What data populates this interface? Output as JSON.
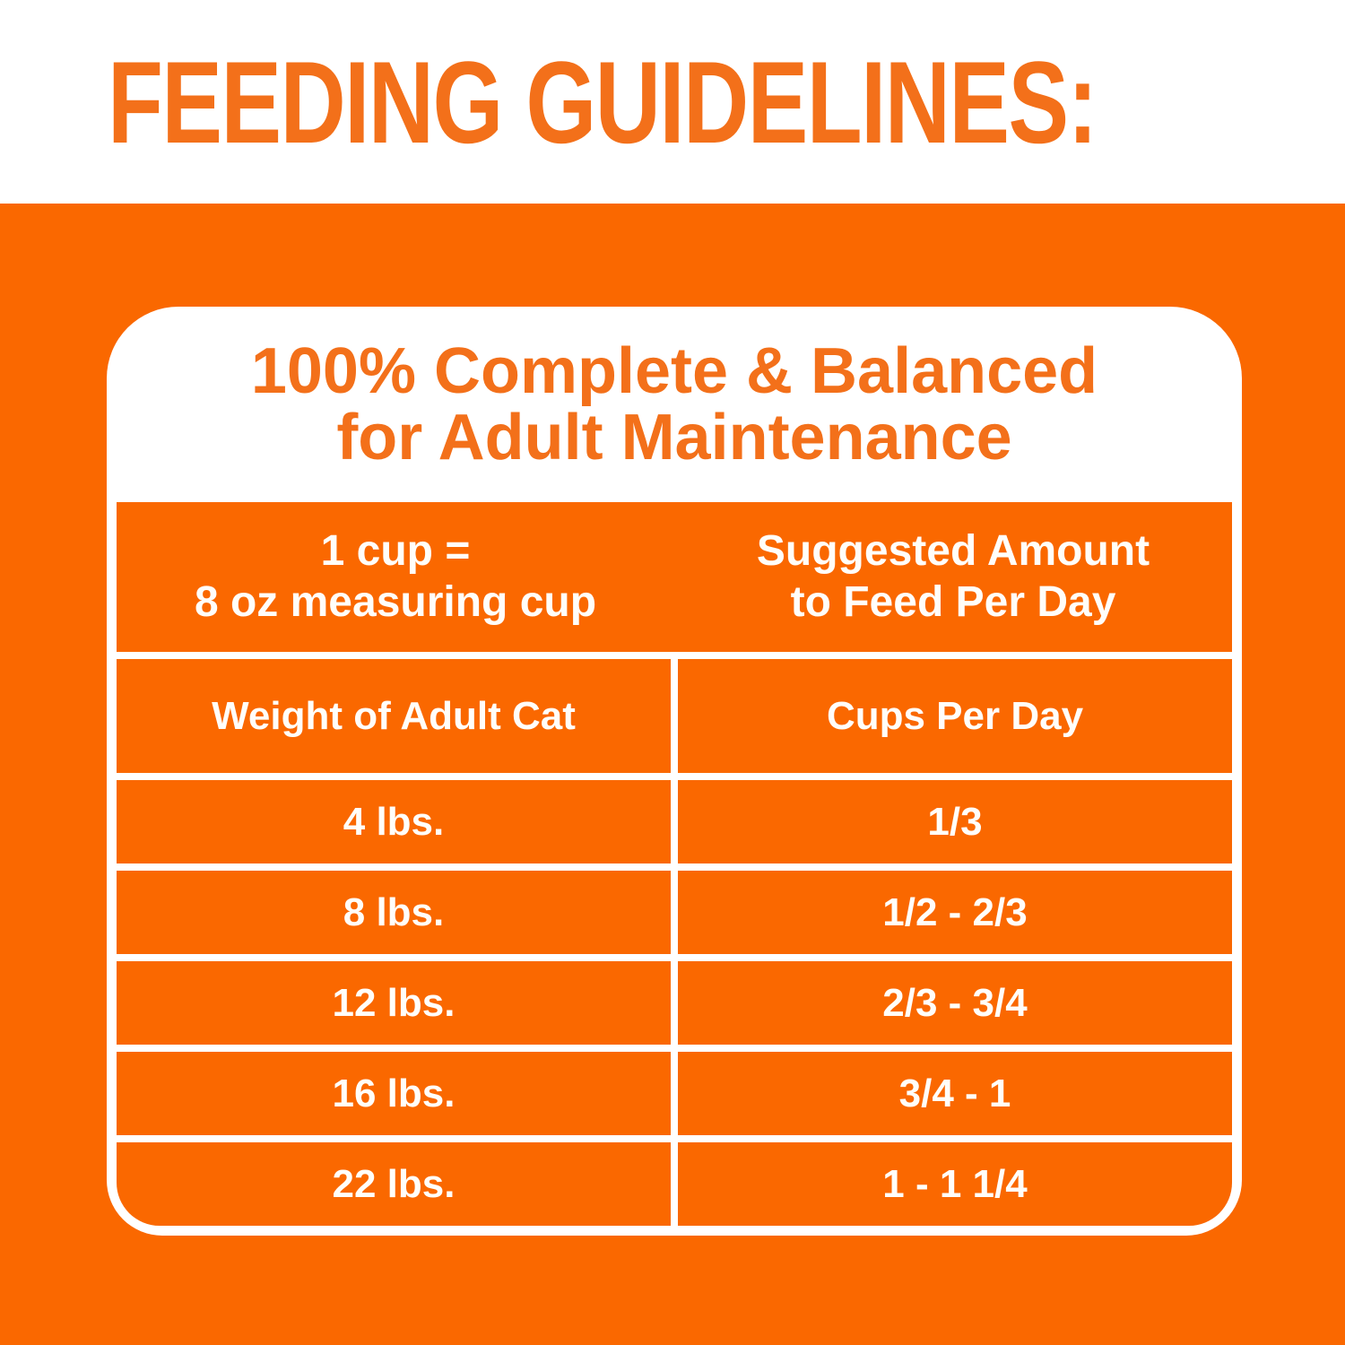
{
  "heading": "FEEDING GUIDELINES:",
  "card": {
    "title_line1": "100% Complete & Balanced",
    "title_line2": "for Adult Maintenance"
  },
  "table": {
    "cup_note_line1": "1 cup =",
    "cup_note_line2": "8 oz measuring cup",
    "suggested_line1": "Suggested Amount",
    "suggested_line2": "to Feed Per Day",
    "col_weight": "Weight of Adult Cat",
    "col_cups": "Cups Per Day",
    "rows": [
      {
        "weight": "4 lbs.",
        "cups": "1/3"
      },
      {
        "weight": "8 lbs.",
        "cups": "1/2 - 2/3"
      },
      {
        "weight": "12 lbs.",
        "cups": "2/3 - 3/4"
      },
      {
        "weight": "16 lbs.",
        "cups": "3/4 - 1"
      },
      {
        "weight": "22 lbs.",
        "cups": "1 - 1 1/4"
      }
    ]
  },
  "colors": {
    "orange_background": "#FA6800",
    "orange_text": "#F3701A",
    "divider_white": "#FFFFFF",
    "cell_text": "#FFFEFA"
  }
}
